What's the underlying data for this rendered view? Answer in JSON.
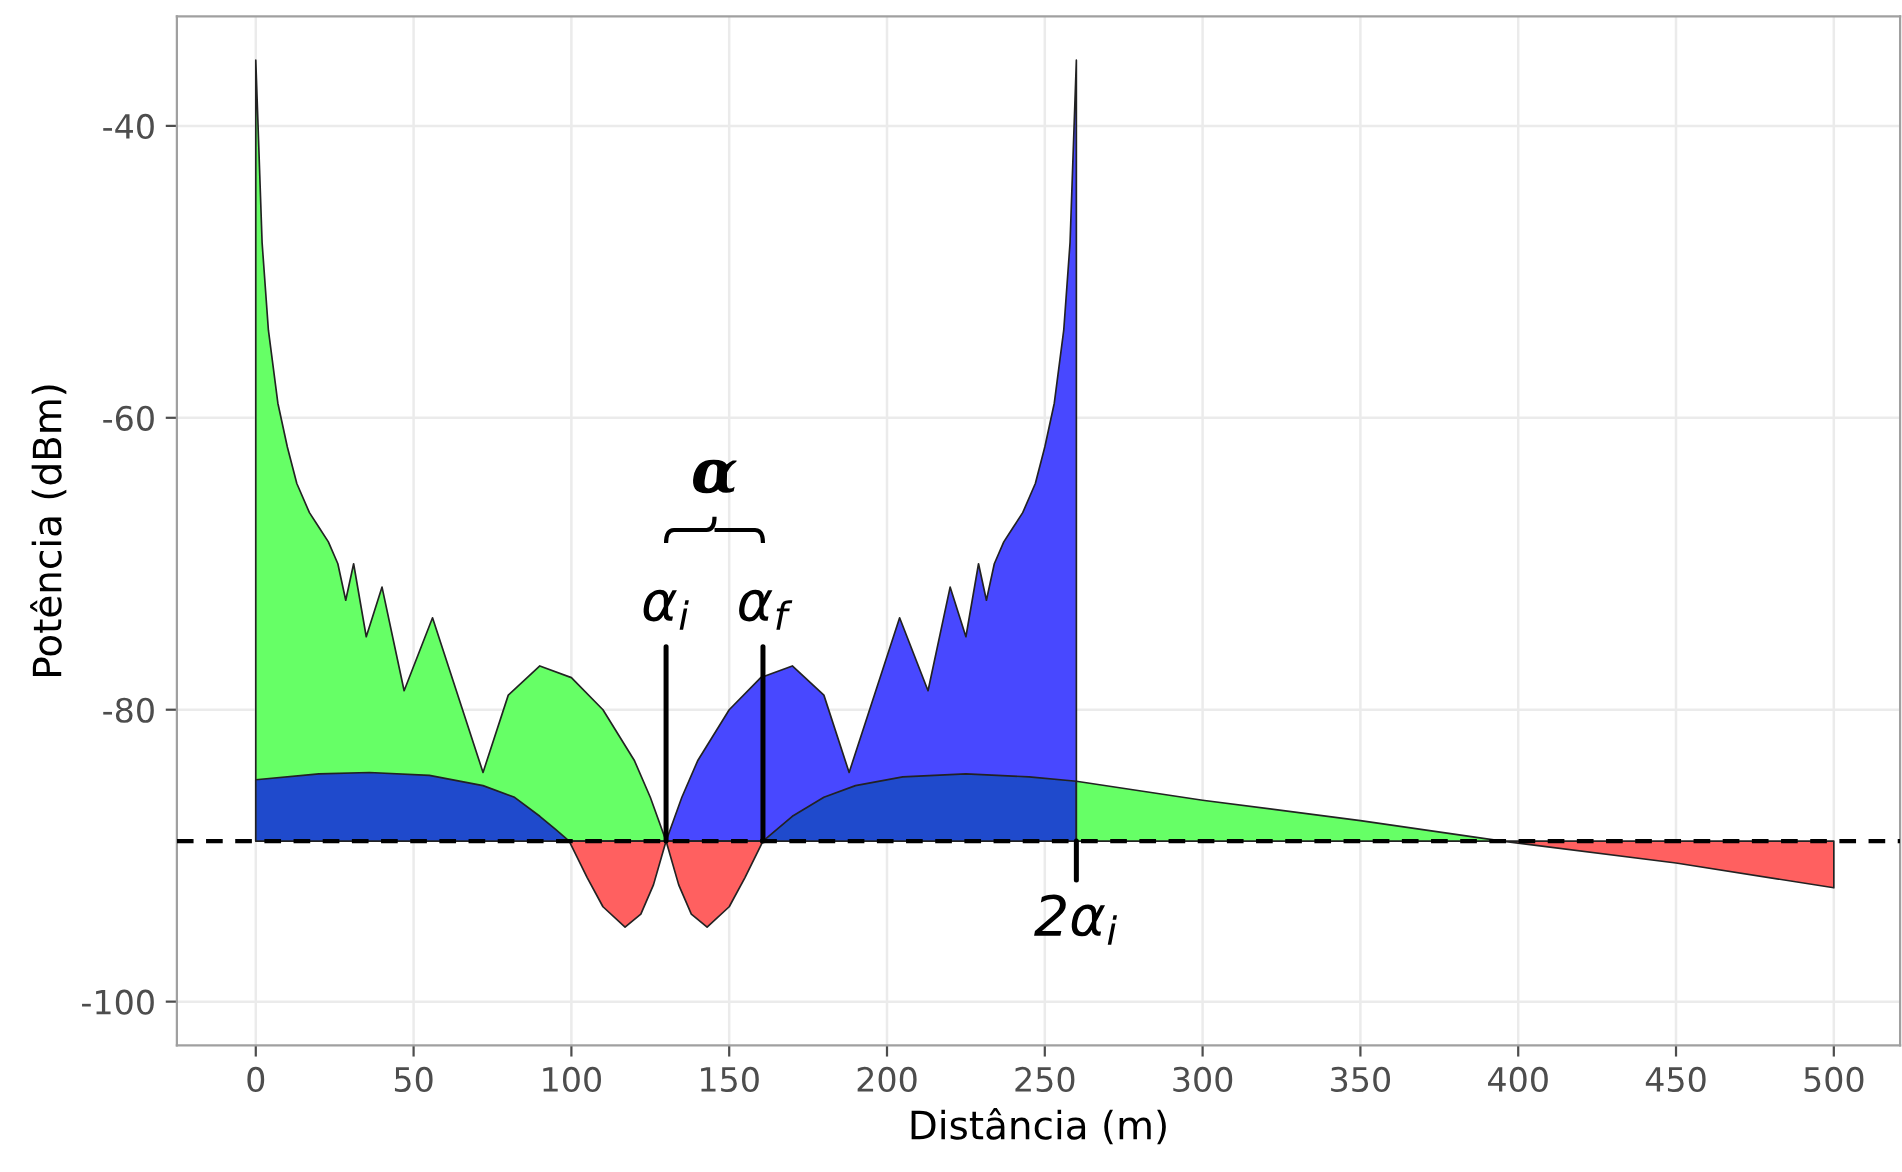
{
  "chart_data": {
    "type": "area",
    "xlabel": "Distância (m)",
    "ylabel": "Potência (dBm)",
    "xlim": [
      -25,
      521
    ],
    "ylim": [
      -103,
      -32.5
    ],
    "xticks": [
      0,
      50,
      100,
      150,
      200,
      250,
      300,
      350,
      400,
      450,
      500
    ],
    "yticks": [
      -40,
      -60,
      -80,
      -100
    ],
    "grid": true,
    "ref_lines": [
      {
        "axis": "y",
        "value": -89,
        "color": "#000000",
        "line_style": "dashed"
      }
    ],
    "series": [
      {
        "color": "#66ff66",
        "x": [
          0,
          0,
          2,
          4,
          7,
          10,
          13,
          17,
          20,
          23,
          26,
          28.5,
          31,
          35,
          40,
          47,
          56,
          72,
          80,
          90,
          100,
          110,
          120,
          125,
          130
        ],
        "values": [
          -89,
          -35.5,
          -48,
          -54,
          -59,
          -62,
          -64.5,
          -66.5,
          -67.5,
          -68.5,
          -70,
          -72.5,
          -70,
          -75,
          -71.6,
          -78.7,
          -73.7,
          -84.3,
          -79,
          -77,
          -77.8,
          -80,
          -83.5,
          -86,
          -89
        ]
      },
      {
        "color": "#4848ff",
        "x": [
          130,
          135,
          140,
          150,
          160,
          170,
          180,
          188,
          204,
          213,
          220,
          225,
          229,
          231.5,
          234,
          237,
          240,
          243,
          247,
          250,
          253,
          256,
          258,
          260,
          260
        ],
        "values": [
          -89,
          -86,
          -83.5,
          -80,
          -77.8,
          -77,
          -79,
          -84.3,
          -73.7,
          -78.7,
          -71.6,
          -75,
          -70,
          -72.5,
          -70,
          -68.5,
          -67.5,
          -66.5,
          -64.5,
          -62,
          -59,
          -54,
          -48,
          -35.5,
          -89
        ]
      },
      {
        "color": "#1f4acc",
        "x": [
          0,
          0,
          20,
          36,
          55,
          72,
          82,
          90,
          95,
          99.3
        ],
        "values": [
          -89,
          -84.8,
          -84.4,
          -84.3,
          -84.5,
          -85.2,
          -86,
          -87.3,
          -88.2,
          -89
        ]
      },
      {
        "color": "#1f4acc",
        "x": [
          160.7,
          170,
          180,
          190,
          205,
          225,
          245,
          260,
          260
        ],
        "values": [
          -89,
          -87.3,
          -86,
          -85.2,
          -84.6,
          -84.4,
          -84.6,
          -84.9,
          -89
        ]
      },
      {
        "color": "#66ff66",
        "x": [
          260,
          260,
          300,
          350,
          395
        ],
        "values": [
          -89,
          -84.9,
          -86.2,
          -87.6,
          -89
        ]
      },
      {
        "color": "#ff6060",
        "x": [
          99.3,
          105,
          110,
          117,
          122,
          126,
          130
        ],
        "values": [
          -89,
          -91.5,
          -93.5,
          -94.9,
          -94,
          -92,
          -89
        ]
      },
      {
        "color": "#ff6060",
        "x": [
          130,
          134,
          138,
          143,
          150,
          155,
          160.7
        ],
        "values": [
          -89,
          -92,
          -94,
          -94.9,
          -93.5,
          -91.5,
          -89
        ]
      },
      {
        "color": "#ff6060",
        "x": [
          395,
          450,
          500,
          500
        ],
        "values": [
          -89,
          -90.5,
          -92.2,
          -89
        ]
      }
    ],
    "annotations": [
      "α",
      {
        "text": "α$_{i}$",
        "x": 130,
        "y": -89
      },
      {
        "text": "α$_{f}$",
        "x": 160.7,
        "y": -89
      },
      {
        "text": "2α$_{i}$",
        "x": 260,
        "y": -89
      }
    ]
  }
}
